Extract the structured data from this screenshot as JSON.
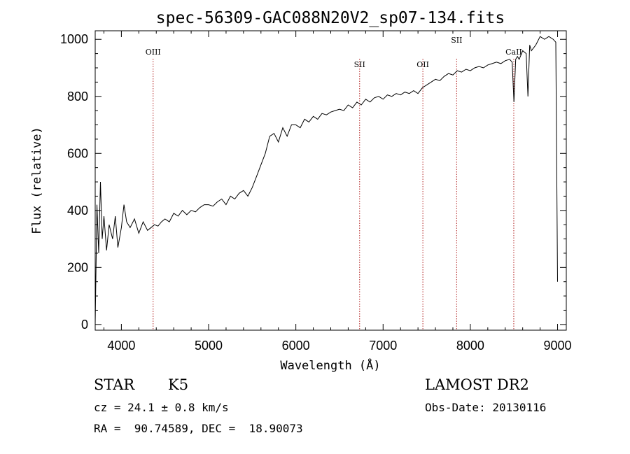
{
  "chart_data": {
    "type": "line",
    "title": "spec-56309-GAC088N20V2_sp07-134.fits",
    "xlabel": "Wavelength (Å)",
    "ylabel": "Flux (relative)",
    "xlim": [
      3700,
      9100
    ],
    "ylim": [
      -20,
      1030
    ],
    "xticks": [
      4000,
      5000,
      6000,
      7000,
      8000,
      9000
    ],
    "yticks": [
      0,
      200,
      400,
      600,
      800,
      1000
    ],
    "series": [
      {
        "x": [
          3700,
          3720,
          3740,
          3760,
          3780,
          3800,
          3830,
          3860,
          3900,
          3930,
          3960,
          4000,
          4030,
          4060,
          4100,
          4150,
          4200,
          4250,
          4300,
          4340,
          4380,
          4420,
          4460,
          4500,
          4550,
          4600,
          4650,
          4700,
          4750,
          4800,
          4850,
          4900,
          4950,
          5000,
          5050,
          5100,
          5150,
          5200,
          5250,
          5300,
          5350,
          5400,
          5450,
          5500,
          5550,
          5600,
          5650,
          5700,
          5750,
          5800,
          5850,
          5900,
          5950,
          6000,
          6050,
          6100,
          6150,
          6200,
          6250,
          6300,
          6350,
          6400,
          6450,
          6500,
          6550,
          6600,
          6650,
          6700,
          6750,
          6800,
          6850,
          6900,
          6950,
          7000,
          7050,
          7100,
          7150,
          7200,
          7250,
          7300,
          7350,
          7400,
          7450,
          7500,
          7550,
          7600,
          7650,
          7700,
          7750,
          7800,
          7850,
          7900,
          7950,
          8000,
          8050,
          8100,
          8150,
          8200,
          8250,
          8300,
          8350,
          8400,
          8450,
          8480,
          8500,
          8520,
          8540,
          8560,
          8600,
          8640,
          8660,
          8680,
          8700,
          8750,
          8800,
          8850,
          8900,
          8950,
          8980,
          9000
        ],
        "y": [
          0,
          420,
          250,
          500,
          300,
          380,
          260,
          350,
          300,
          380,
          270,
          340,
          420,
          360,
          340,
          370,
          320,
          360,
          330,
          340,
          350,
          345,
          360,
          370,
          360,
          390,
          380,
          400,
          385,
          400,
          395,
          410,
          420,
          420,
          415,
          430,
          440,
          420,
          450,
          440,
          460,
          470,
          450,
          480,
          520,
          560,
          600,
          660,
          670,
          640,
          690,
          660,
          700,
          700,
          690,
          720,
          710,
          730,
          720,
          740,
          735,
          745,
          750,
          755,
          750,
          770,
          760,
          780,
          770,
          790,
          780,
          795,
          800,
          790,
          805,
          800,
          810,
          805,
          815,
          810,
          820,
          810,
          830,
          840,
          850,
          860,
          855,
          870,
          880,
          875,
          890,
          885,
          895,
          890,
          900,
          905,
          900,
          910,
          915,
          920,
          915,
          925,
          930,
          920,
          780,
          930,
          940,
          930,
          960,
          950,
          800,
          980,
          960,
          980,
          1010,
          1000,
          1010,
          1000,
          990,
          150
        ]
      }
    ],
    "emission_lines": [
      {
        "label": "OIII",
        "x": 4364
      },
      {
        "label": "SII",
        "x": 6731
      },
      {
        "label": "OII",
        "x": 7456
      },
      {
        "label": "SII",
        "x": 7843
      },
      {
        "label": "CaII",
        "x": 8498
      }
    ]
  },
  "info": {
    "class": "STAR",
    "subclass": "K5",
    "cz": "cz = 24.1 ± 0.8 km/s",
    "radec": "RA =  90.74589, DEC =  18.90073",
    "survey": "LAMOST DR2",
    "obs_date": "Obs-Date: 20130116"
  }
}
